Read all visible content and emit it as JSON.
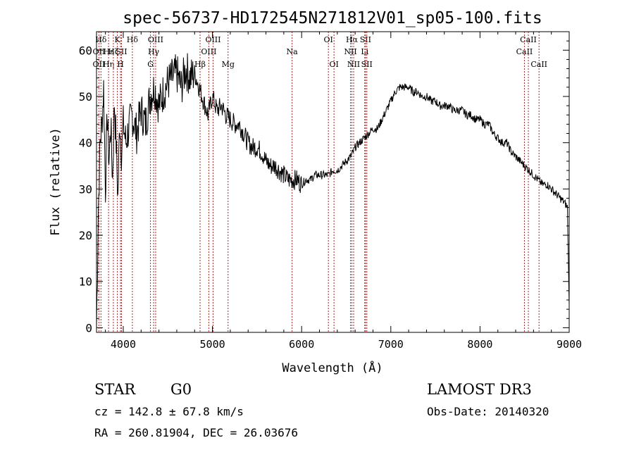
{
  "chart_data": {
    "type": "line",
    "title": "spec-56737-HD172545N271812V01_sp05-100.fits",
    "xlabel": "Wavelength (Å)",
    "ylabel": "Flux (relative)",
    "xlim": [
      3700,
      9000
    ],
    "ylim": [
      -1,
      64
    ],
    "x_ticks": [
      4000,
      5000,
      6000,
      7000,
      8000,
      9000
    ],
    "y_ticks": [
      0,
      10,
      20,
      30,
      40,
      50,
      60
    ],
    "series": [
      {
        "name": "flux",
        "x": [
          3700,
          3720,
          3740,
          3760,
          3780,
          3800,
          3820,
          3840,
          3860,
          3880,
          3900,
          3920,
          3940,
          3960,
          3980,
          4000,
          4030,
          4060,
          4100,
          4150,
          4200,
          4250,
          4300,
          4350,
          4400,
          4450,
          4500,
          4550,
          4600,
          4650,
          4700,
          4750,
          4800,
          4850,
          4900,
          4950,
          5000,
          5050,
          5100,
          5150,
          5200,
          5250,
          5300,
          5350,
          5400,
          5450,
          5500,
          5550,
          5600,
          5650,
          5700,
          5750,
          5800,
          5850,
          5900,
          5950,
          6000,
          6050,
          6100,
          6150,
          6200,
          6250,
          6300,
          6350,
          6400,
          6450,
          6500,
          6550,
          6580,
          6600,
          6650,
          6700,
          6750,
          6800,
          6850,
          6900,
          6950,
          7000,
          7050,
          7100,
          7150,
          7200,
          7250,
          7300,
          7350,
          7400,
          7450,
          7500,
          7550,
          7600,
          7650,
          7700,
          7750,
          7800,
          7850,
          7900,
          7950,
          8000,
          8050,
          8100,
          8150,
          8200,
          8250,
          8300,
          8350,
          8400,
          8450,
          8500,
          8550,
          8600,
          8650,
          8700,
          8750,
          8800,
          8850,
          8900,
          8950,
          8980,
          9000
        ],
        "values": [
          0,
          25,
          40,
          44,
          52,
          30,
          46,
          36,
          44,
          32,
          49,
          40,
          28,
          45,
          38,
          44,
          40,
          43,
          46,
          42,
          47,
          44,
          50,
          52,
          48,
          51,
          53,
          54,
          55,
          52,
          56,
          54,
          55,
          52,
          49,
          46,
          50,
          47,
          48,
          46,
          45,
          44,
          44,
          42,
          40,
          39,
          39,
          38,
          36,
          35,
          35,
          34,
          33,
          32,
          32,
          32,
          31,
          32,
          32,
          33,
          33,
          33,
          33,
          34,
          34,
          35,
          36,
          37,
          38,
          39,
          40,
          41,
          42,
          43,
          43,
          45,
          47,
          49,
          51,
          52,
          52,
          52,
          51,
          51,
          50,
          50,
          49,
          49,
          48,
          48,
          48,
          47,
          47,
          47,
          46,
          46,
          45,
          45,
          44,
          44,
          42,
          41,
          40,
          40,
          38,
          37,
          36,
          35,
          34,
          33,
          32,
          31,
          31,
          30,
          29,
          28,
          27,
          26,
          5
        ]
      }
    ],
    "line_markers": [
      {
        "label": "Hδ",
        "x": 3750,
        "row": 1
      },
      {
        "label": "OII",
        "x": 3727,
        "row": 2
      },
      {
        "label": "OII",
        "x": 3727,
        "row": 3
      },
      {
        "label": "Hε",
        "x": 3835,
        "row": 2
      },
      {
        "label": "Hη",
        "x": 3835,
        "row": 3
      },
      {
        "label": "K",
        "x": 3934,
        "row": 1
      },
      {
        "label": "Hζ",
        "x": 3889,
        "row": 2
      },
      {
        "label": "SII",
        "x": 3980,
        "row": 2
      },
      {
        "label": "H",
        "x": 3969,
        "row": 3
      },
      {
        "label": "Hδ",
        "x": 4102,
        "row": 1
      },
      {
        "label": "OIII",
        "x": 4363,
        "row": 1
      },
      {
        "label": "Hγ",
        "x": 4340,
        "row": 2
      },
      {
        "label": "G",
        "x": 4305,
        "row": 3
      },
      {
        "label": "OIII",
        "x": 5007,
        "row": 1
      },
      {
        "label": "OIII",
        "x": 4959,
        "row": 2
      },
      {
        "label": "Hβ",
        "x": 4861,
        "row": 3
      },
      {
        "label": "Mg",
        "x": 5175,
        "row": 3
      },
      {
        "label": "Na",
        "x": 5893,
        "row": 2
      },
      {
        "label": "OI",
        "x": 6300,
        "row": 1
      },
      {
        "label": "OI",
        "x": 6363,
        "row": 3
      },
      {
        "label": "Hα",
        "x": 6563,
        "row": 1
      },
      {
        "label": "NII",
        "x": 6548,
        "row": 2
      },
      {
        "label": "NII",
        "x": 6583,
        "row": 3
      },
      {
        "label": "SII",
        "x": 6716,
        "row": 1
      },
      {
        "label": "Li",
        "x": 6708,
        "row": 2
      },
      {
        "label": "SII",
        "x": 6731,
        "row": 3
      },
      {
        "label": "CaII",
        "x": 8542,
        "row": 1
      },
      {
        "label": "CaII",
        "x": 8498,
        "row": 2
      },
      {
        "label": "CaII",
        "x": 8662,
        "row": 3
      }
    ]
  },
  "info": {
    "class_label": "STAR",
    "subclass": "G0",
    "survey": "LAMOST DR3",
    "cz_text": "cz = 142.8 ± 67.8 km/s",
    "obs_date": "Obs-Date: 20140320",
    "coords": "RA = 260.81904, DEC =  26.03676"
  },
  "colors": {
    "line": "#000000",
    "marker": "#b22222"
  }
}
